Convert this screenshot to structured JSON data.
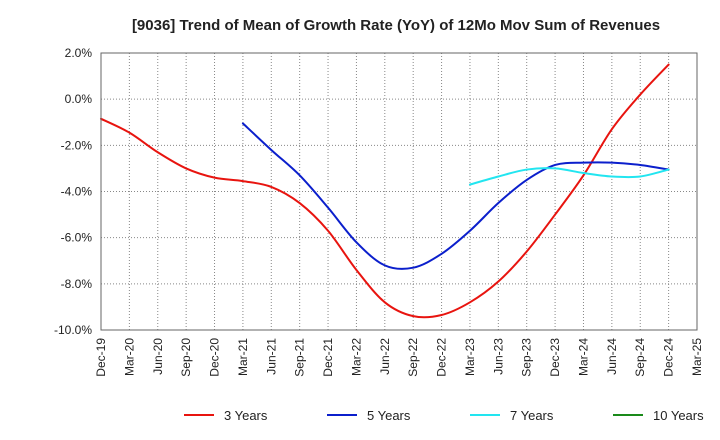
{
  "chart_data": {
    "type": "line",
    "title": "[9036]  Trend of Mean of Growth Rate (YoY) of 12Mo Mov Sum of Revenues",
    "xlabel": "",
    "ylabel": "",
    "ylim": [
      -10,
      2
    ],
    "yticks": [
      2,
      0,
      -2,
      -4,
      -6,
      -8,
      -10
    ],
    "ytick_labels": [
      "2.0%",
      "0.0%",
      "-2.0%",
      "-4.0%",
      "-6.0%",
      "-8.0%",
      "-10.0%"
    ],
    "x": [
      "Dec-19",
      "Mar-20",
      "Jun-20",
      "Sep-20",
      "Dec-20",
      "Mar-21",
      "Jun-21",
      "Sep-21",
      "Dec-21",
      "Mar-22",
      "Jun-22",
      "Sep-22",
      "Dec-22",
      "Mar-23",
      "Jun-23",
      "Sep-23",
      "Dec-23",
      "Mar-24",
      "Jun-24",
      "Sep-24",
      "Dec-24",
      "Mar-25"
    ],
    "grid": true,
    "legend_position": "bottom",
    "series": [
      {
        "name": "3 Years",
        "color": "#e8140f",
        "values": [
          -0.85,
          -1.45,
          -2.3,
          -3.0,
          -3.4,
          -3.55,
          -3.8,
          -4.5,
          -5.7,
          -7.4,
          -8.8,
          -9.4,
          -9.35,
          -8.8,
          -7.9,
          -6.6,
          -5.0,
          -3.3,
          -1.3,
          0.2,
          1.5,
          null
        ]
      },
      {
        "name": "5 Years",
        "color": "#0b1fcc",
        "values": [
          null,
          null,
          null,
          null,
          null,
          -1.05,
          -2.2,
          -3.3,
          -4.7,
          -6.2,
          -7.2,
          -7.3,
          -6.7,
          -5.7,
          -4.5,
          -3.5,
          -2.85,
          -2.75,
          -2.75,
          -2.85,
          -3.05,
          null
        ]
      },
      {
        "name": "7 Years",
        "color": "#22e5f0",
        "values": [
          null,
          null,
          null,
          null,
          null,
          null,
          null,
          null,
          null,
          null,
          null,
          null,
          null,
          -3.7,
          -3.35,
          -3.05,
          -3.0,
          -3.2,
          -3.35,
          -3.35,
          -3.05,
          null
        ]
      },
      {
        "name": "10 Years",
        "color": "#1a8a1a",
        "values": [
          null,
          null,
          null,
          null,
          null,
          null,
          null,
          null,
          null,
          null,
          null,
          null,
          null,
          null,
          null,
          null,
          null,
          null,
          null,
          null,
          null,
          null
        ]
      }
    ]
  }
}
